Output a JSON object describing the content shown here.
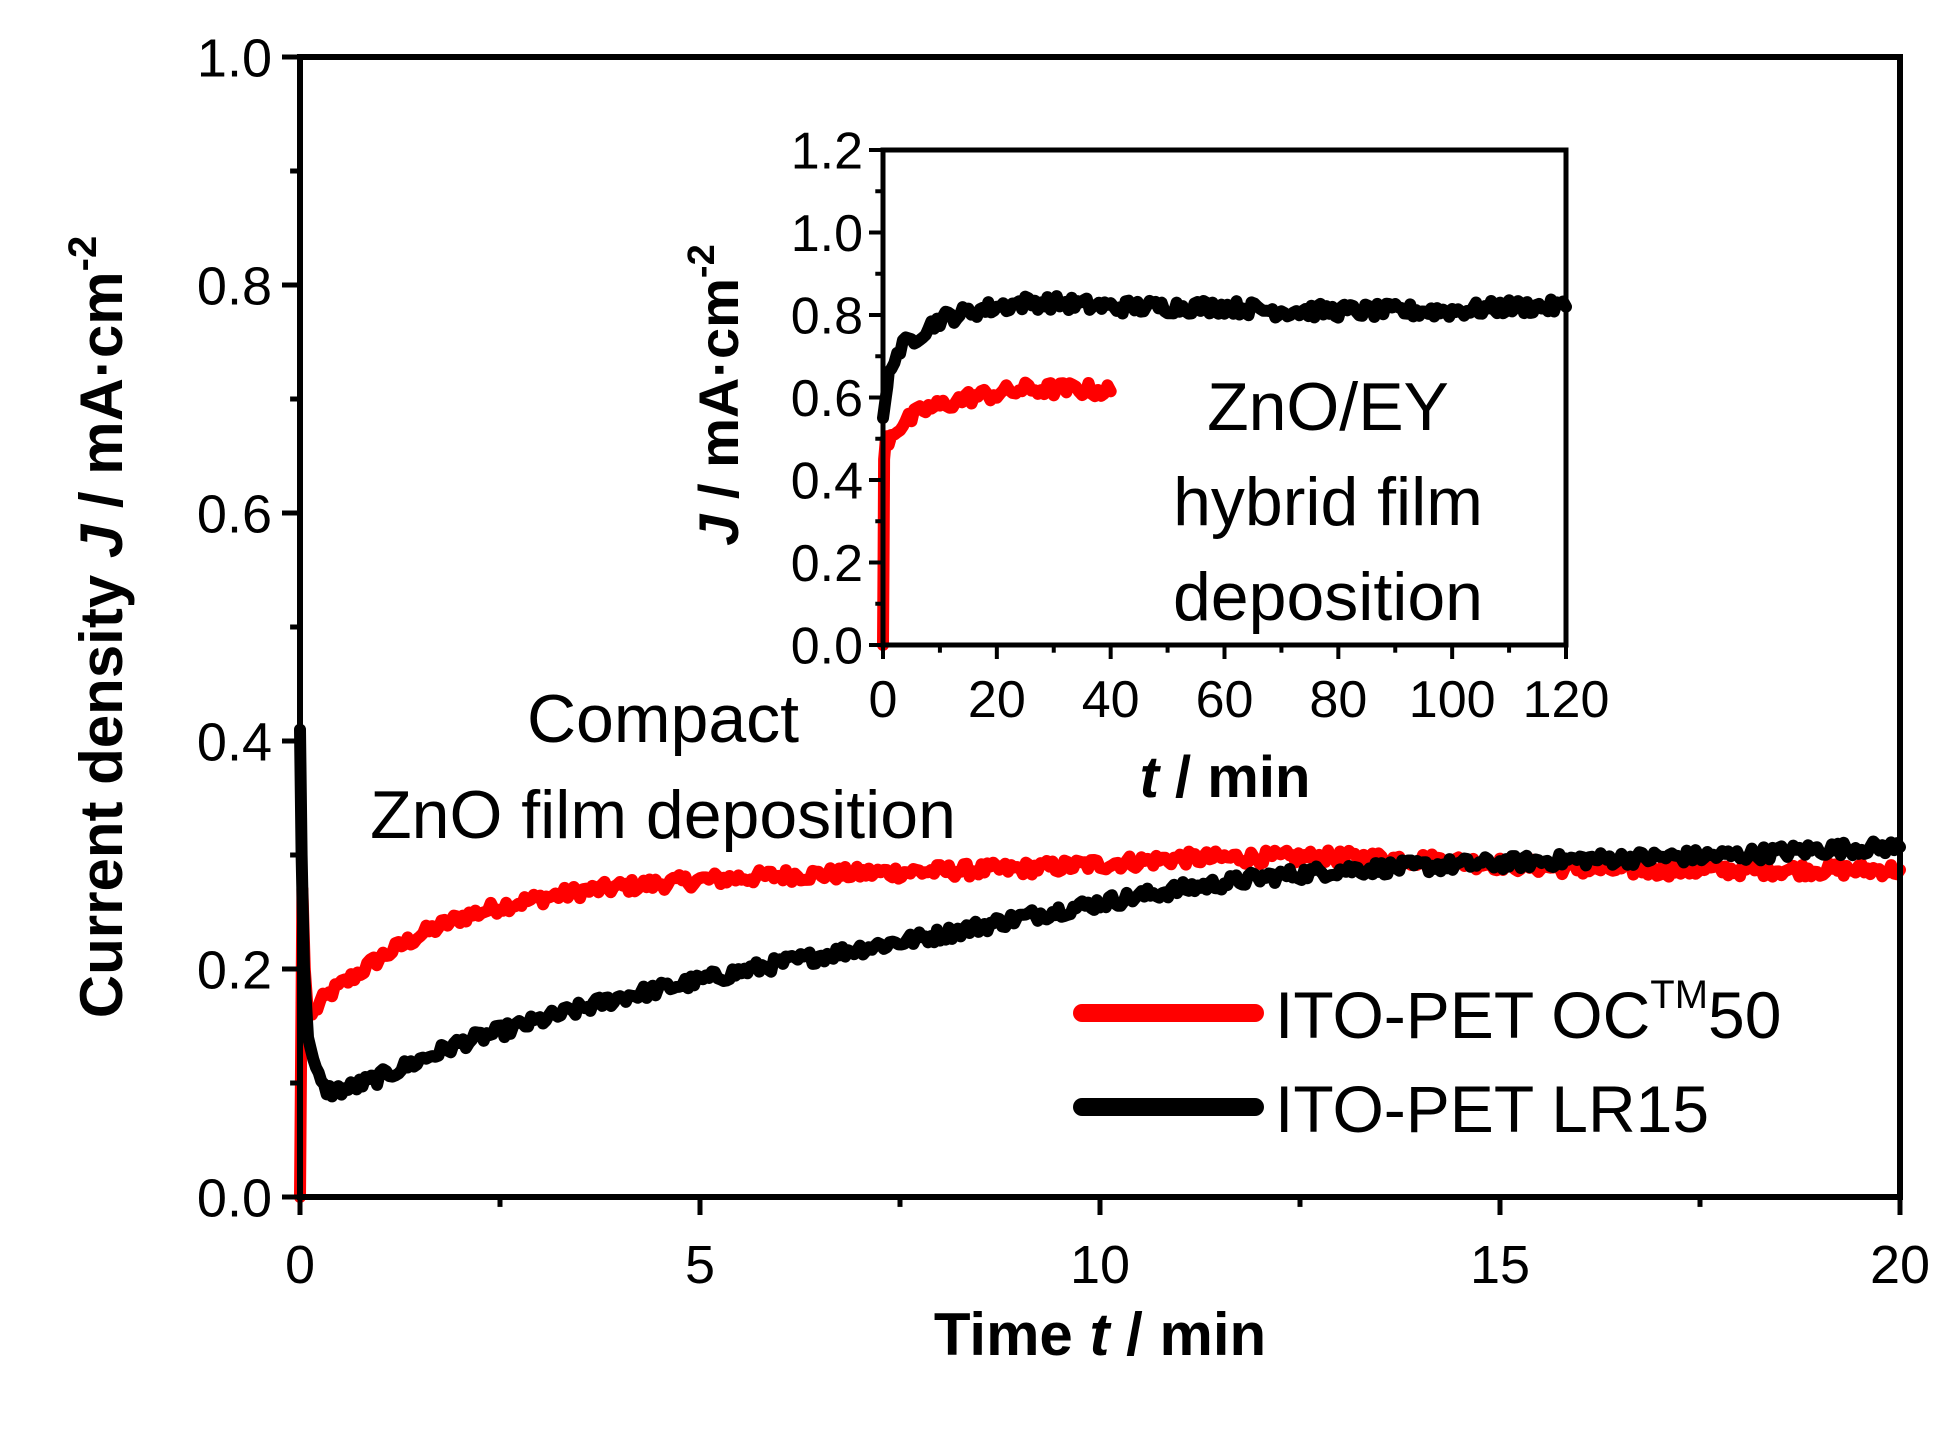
{
  "colors": {
    "ITO-PET OCTM50": "#ff0000",
    "ITO-PET LR15": "#000000",
    "axis": "#000000"
  },
  "chart_data": [
    {
      "type": "line",
      "id": "main",
      "title": "",
      "xlabel_parts": [
        "Time ",
        "t",
        " / min"
      ],
      "ylabel_parts": [
        "Current density ",
        "J",
        " / mA·cm",
        "-2"
      ],
      "xlim": [
        0,
        20
      ],
      "ylim": [
        0,
        1.0
      ],
      "x_ticks": [
        0,
        5,
        10,
        15,
        20
      ],
      "x_tick_labels": [
        "0",
        "5",
        "10",
        "15",
        "20"
      ],
      "y_ticks": [
        0.0,
        0.2,
        0.4,
        0.6,
        0.8,
        1.0
      ],
      "y_tick_labels": [
        "0.0",
        "0.2",
        "0.4",
        "0.6",
        "0.8",
        "1.0"
      ],
      "grid": false,
      "legend": {
        "position": "bottom-right",
        "entries": [
          {
            "series": "ITO-PET OCTM50",
            "text": "ITO-PET OC",
            "superscript": "TM",
            "suffix": "50"
          },
          {
            "series": "ITO-PET LR15",
            "text": "ITO-PET LR15",
            "superscript": "",
            "suffix": ""
          }
        ]
      },
      "annotation": {
        "lines": [
          "Compact",
          "ZnO film deposition"
        ]
      },
      "series": [
        {
          "name": "ITO-PET OCTM50",
          "x": [
            0.0,
            0.03,
            0.06,
            0.1,
            0.15,
            0.25,
            0.4,
            0.6,
            0.8,
            1.0,
            1.5,
            2.0,
            2.5,
            3.0,
            3.5,
            4.0,
            5.0,
            6.0,
            7.0,
            8.0,
            9.0,
            10.0,
            11.0,
            12.0,
            13.0,
            14.0,
            15.0,
            16.0,
            17.0,
            18.0,
            19.0,
            20.0
          ],
          "y": [
            0.0,
            0.27,
            0.2,
            0.16,
            0.16,
            0.17,
            0.18,
            0.19,
            0.2,
            0.21,
            0.23,
            0.245,
            0.255,
            0.262,
            0.268,
            0.272,
            0.278,
            0.282,
            0.284,
            0.286,
            0.288,
            0.292,
            0.297,
            0.298,
            0.298,
            0.296,
            0.292,
            0.288,
            0.287,
            0.287,
            0.287,
            0.287
          ]
        },
        {
          "name": "ITO-PET LR15",
          "x": [
            0.0,
            0.02,
            0.05,
            0.1,
            0.2,
            0.3,
            0.4,
            0.6,
            1.0,
            1.5,
            2.0,
            3.0,
            4.0,
            5.0,
            6.0,
            7.0,
            8.0,
            9.0,
            10.0,
            11.0,
            12.0,
            13.0,
            14.0,
            15.0,
            16.0,
            17.0,
            18.0,
            19.0,
            20.0
          ],
          "y": [
            0.41,
            0.3,
            0.2,
            0.14,
            0.11,
            0.095,
            0.093,
            0.095,
            0.105,
            0.12,
            0.135,
            0.155,
            0.175,
            0.19,
            0.205,
            0.218,
            0.23,
            0.245,
            0.258,
            0.27,
            0.28,
            0.287,
            0.29,
            0.293,
            0.296,
            0.298,
            0.3,
            0.305,
            0.307
          ]
        }
      ]
    },
    {
      "type": "line",
      "id": "inset",
      "title": "",
      "xlabel_parts": [
        "t",
        " / min"
      ],
      "ylabel_parts": [
        "J",
        " / mA·cm",
        "-2"
      ],
      "xlim": [
        0,
        120
      ],
      "ylim": [
        0,
        1.2
      ],
      "x_ticks": [
        0,
        20,
        40,
        60,
        80,
        100,
        120
      ],
      "x_tick_labels": [
        "0",
        "20",
        "40",
        "60",
        "80",
        "100",
        "120"
      ],
      "y_ticks": [
        0.0,
        0.2,
        0.4,
        0.6,
        0.8,
        1.0,
        1.2
      ],
      "y_tick_labels": [
        "0.0",
        "0.2",
        "0.4",
        "0.6",
        "0.8",
        "1.0",
        "1.2"
      ],
      "grid": false,
      "annotation": {
        "lines": [
          "ZnO/EY",
          "hybrid film",
          "deposition"
        ]
      },
      "series": [
        {
          "name": "ITO-PET OCTM50",
          "x": [
            0.0,
            0.2,
            0.5,
            1.0,
            2.0,
            3.0,
            5.0,
            7.0,
            10.0,
            15.0,
            20.0,
            25.0,
            30.0,
            35.0,
            40.0
          ],
          "y": [
            0.0,
            0.45,
            0.5,
            0.5,
            0.52,
            0.53,
            0.55,
            0.57,
            0.58,
            0.6,
            0.61,
            0.62,
            0.62,
            0.62,
            0.615
          ]
        },
        {
          "name": "ITO-PET LR15",
          "x": [
            0.0,
            0.5,
            1.0,
            2.0,
            4.0,
            6.0,
            8.0,
            10.0,
            13.0,
            16.0,
            20.0,
            25.0,
            30.0,
            40.0,
            50.0,
            60.0,
            70.0,
            80.0,
            90.0,
            100.0,
            110.0,
            120.0
          ],
          "y": [
            0.55,
            0.6,
            0.65,
            0.7,
            0.73,
            0.75,
            0.77,
            0.79,
            0.8,
            0.81,
            0.82,
            0.83,
            0.83,
            0.82,
            0.82,
            0.82,
            0.81,
            0.81,
            0.81,
            0.81,
            0.82,
            0.82
          ]
        }
      ]
    }
  ]
}
